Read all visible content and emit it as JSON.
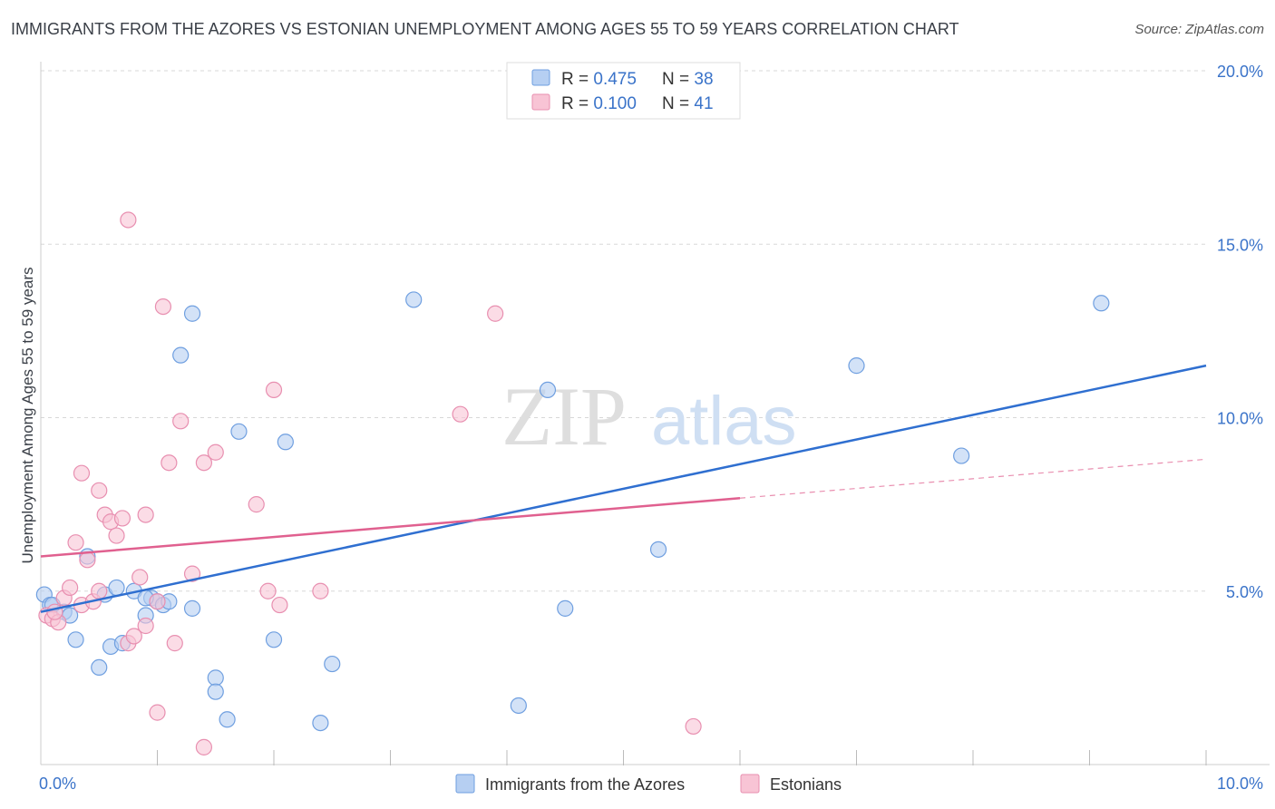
{
  "title": "IMMIGRANTS FROM THE AZORES VS ESTONIAN UNEMPLOYMENT AMONG AGES 55 TO 59 YEARS CORRELATION CHART",
  "source": "Source: ZipAtlas.com",
  "watermark": {
    "zip": "ZIP",
    "atlas": "atlas"
  },
  "chart_data": {
    "type": "scatter",
    "xlabel": "",
    "ylabel": "Unemployment Among Ages 55 to 59 years",
    "xlim": [
      0,
      10
    ],
    "ylim": [
      0,
      20
    ],
    "x_tick_labels": [
      {
        "value": 0,
        "label": "0.0%"
      },
      {
        "value": 10,
        "label": "10.0%"
      }
    ],
    "y_tick_labels": [
      {
        "value": 5,
        "label": "5.0%"
      },
      {
        "value": 10,
        "label": "10.0%"
      },
      {
        "value": 15,
        "label": "15.0%"
      },
      {
        "value": 20,
        "label": "20.0%"
      }
    ],
    "legend_stats": [
      {
        "r_label": "R = ",
        "r_value": "0.475",
        "n_label": "N = ",
        "n_value": "38"
      },
      {
        "r_label": "R = ",
        "r_value": "0.100",
        "n_label": "N = ",
        "n_value": "41"
      }
    ],
    "series": [
      {
        "name": "Immigrants from the Azores",
        "color": "#6f9fe0",
        "fill": "#b6cff2",
        "line_color": "#2f6fd0",
        "trend": {
          "x0": 0,
          "y0": 4.4,
          "x1": 10,
          "y1": 11.5,
          "dashed_from": null
        },
        "points": [
          [
            0.03,
            4.9
          ],
          [
            0.08,
            4.6
          ],
          [
            0.2,
            4.4
          ],
          [
            0.25,
            4.3
          ],
          [
            0.3,
            3.6
          ],
          [
            0.4,
            6.0
          ],
          [
            0.5,
            2.8
          ],
          [
            0.55,
            4.9
          ],
          [
            0.6,
            3.4
          ],
          [
            0.65,
            5.1
          ],
          [
            0.7,
            3.5
          ],
          [
            0.8,
            5.0
          ],
          [
            0.9,
            4.3
          ],
          [
            0.95,
            4.8
          ],
          [
            1.0,
            4.7
          ],
          [
            1.05,
            4.6
          ],
          [
            1.1,
            4.7
          ],
          [
            1.2,
            11.8
          ],
          [
            1.3,
            13.0
          ],
          [
            1.3,
            4.5
          ],
          [
            1.5,
            2.5
          ],
          [
            1.5,
            2.1
          ],
          [
            1.6,
            1.3
          ],
          [
            1.7,
            9.6
          ],
          [
            2.0,
            3.6
          ],
          [
            2.1,
            9.3
          ],
          [
            2.4,
            1.2
          ],
          [
            2.5,
            2.9
          ],
          [
            3.2,
            13.4
          ],
          [
            4.1,
            1.7
          ],
          [
            4.35,
            10.8
          ],
          [
            4.5,
            4.5
          ],
          [
            5.3,
            6.2
          ],
          [
            7.0,
            11.5
          ],
          [
            7.9,
            8.9
          ],
          [
            9.1,
            13.3
          ],
          [
            0.1,
            4.6
          ],
          [
            0.9,
            4.8
          ]
        ]
      },
      {
        "name": "Estonians",
        "color": "#e88fb0",
        "fill": "#f8c4d5",
        "line_color": "#e0608f",
        "trend": {
          "x0": 0,
          "y0": 6.0,
          "x1": 10,
          "y1": 8.8,
          "dashed_from": 6.0
        },
        "points": [
          [
            0.05,
            4.3
          ],
          [
            0.1,
            4.2
          ],
          [
            0.15,
            4.1
          ],
          [
            0.2,
            4.8
          ],
          [
            0.25,
            5.1
          ],
          [
            0.3,
            6.4
          ],
          [
            0.35,
            4.6
          ],
          [
            0.35,
            8.4
          ],
          [
            0.4,
            5.9
          ],
          [
            0.45,
            4.7
          ],
          [
            0.5,
            7.9
          ],
          [
            0.5,
            5.0
          ],
          [
            0.55,
            7.2
          ],
          [
            0.6,
            7.0
          ],
          [
            0.65,
            6.6
          ],
          [
            0.7,
            7.1
          ],
          [
            0.75,
            3.5
          ],
          [
            0.75,
            15.7
          ],
          [
            0.8,
            3.7
          ],
          [
            0.85,
            5.4
          ],
          [
            0.9,
            7.2
          ],
          [
            0.9,
            4.0
          ],
          [
            1.0,
            4.7
          ],
          [
            1.0,
            1.5
          ],
          [
            1.05,
            13.2
          ],
          [
            1.1,
            8.7
          ],
          [
            1.15,
            3.5
          ],
          [
            1.2,
            9.9
          ],
          [
            1.3,
            5.5
          ],
          [
            1.4,
            0.5
          ],
          [
            1.4,
            8.7
          ],
          [
            1.5,
            9.0
          ],
          [
            1.85,
            7.5
          ],
          [
            1.95,
            5.0
          ],
          [
            2.0,
            10.8
          ],
          [
            2.05,
            4.6
          ],
          [
            2.4,
            5.0
          ],
          [
            3.6,
            10.1
          ],
          [
            3.9,
            13.0
          ],
          [
            5.6,
            1.1
          ],
          [
            0.12,
            4.4
          ]
        ]
      }
    ]
  }
}
